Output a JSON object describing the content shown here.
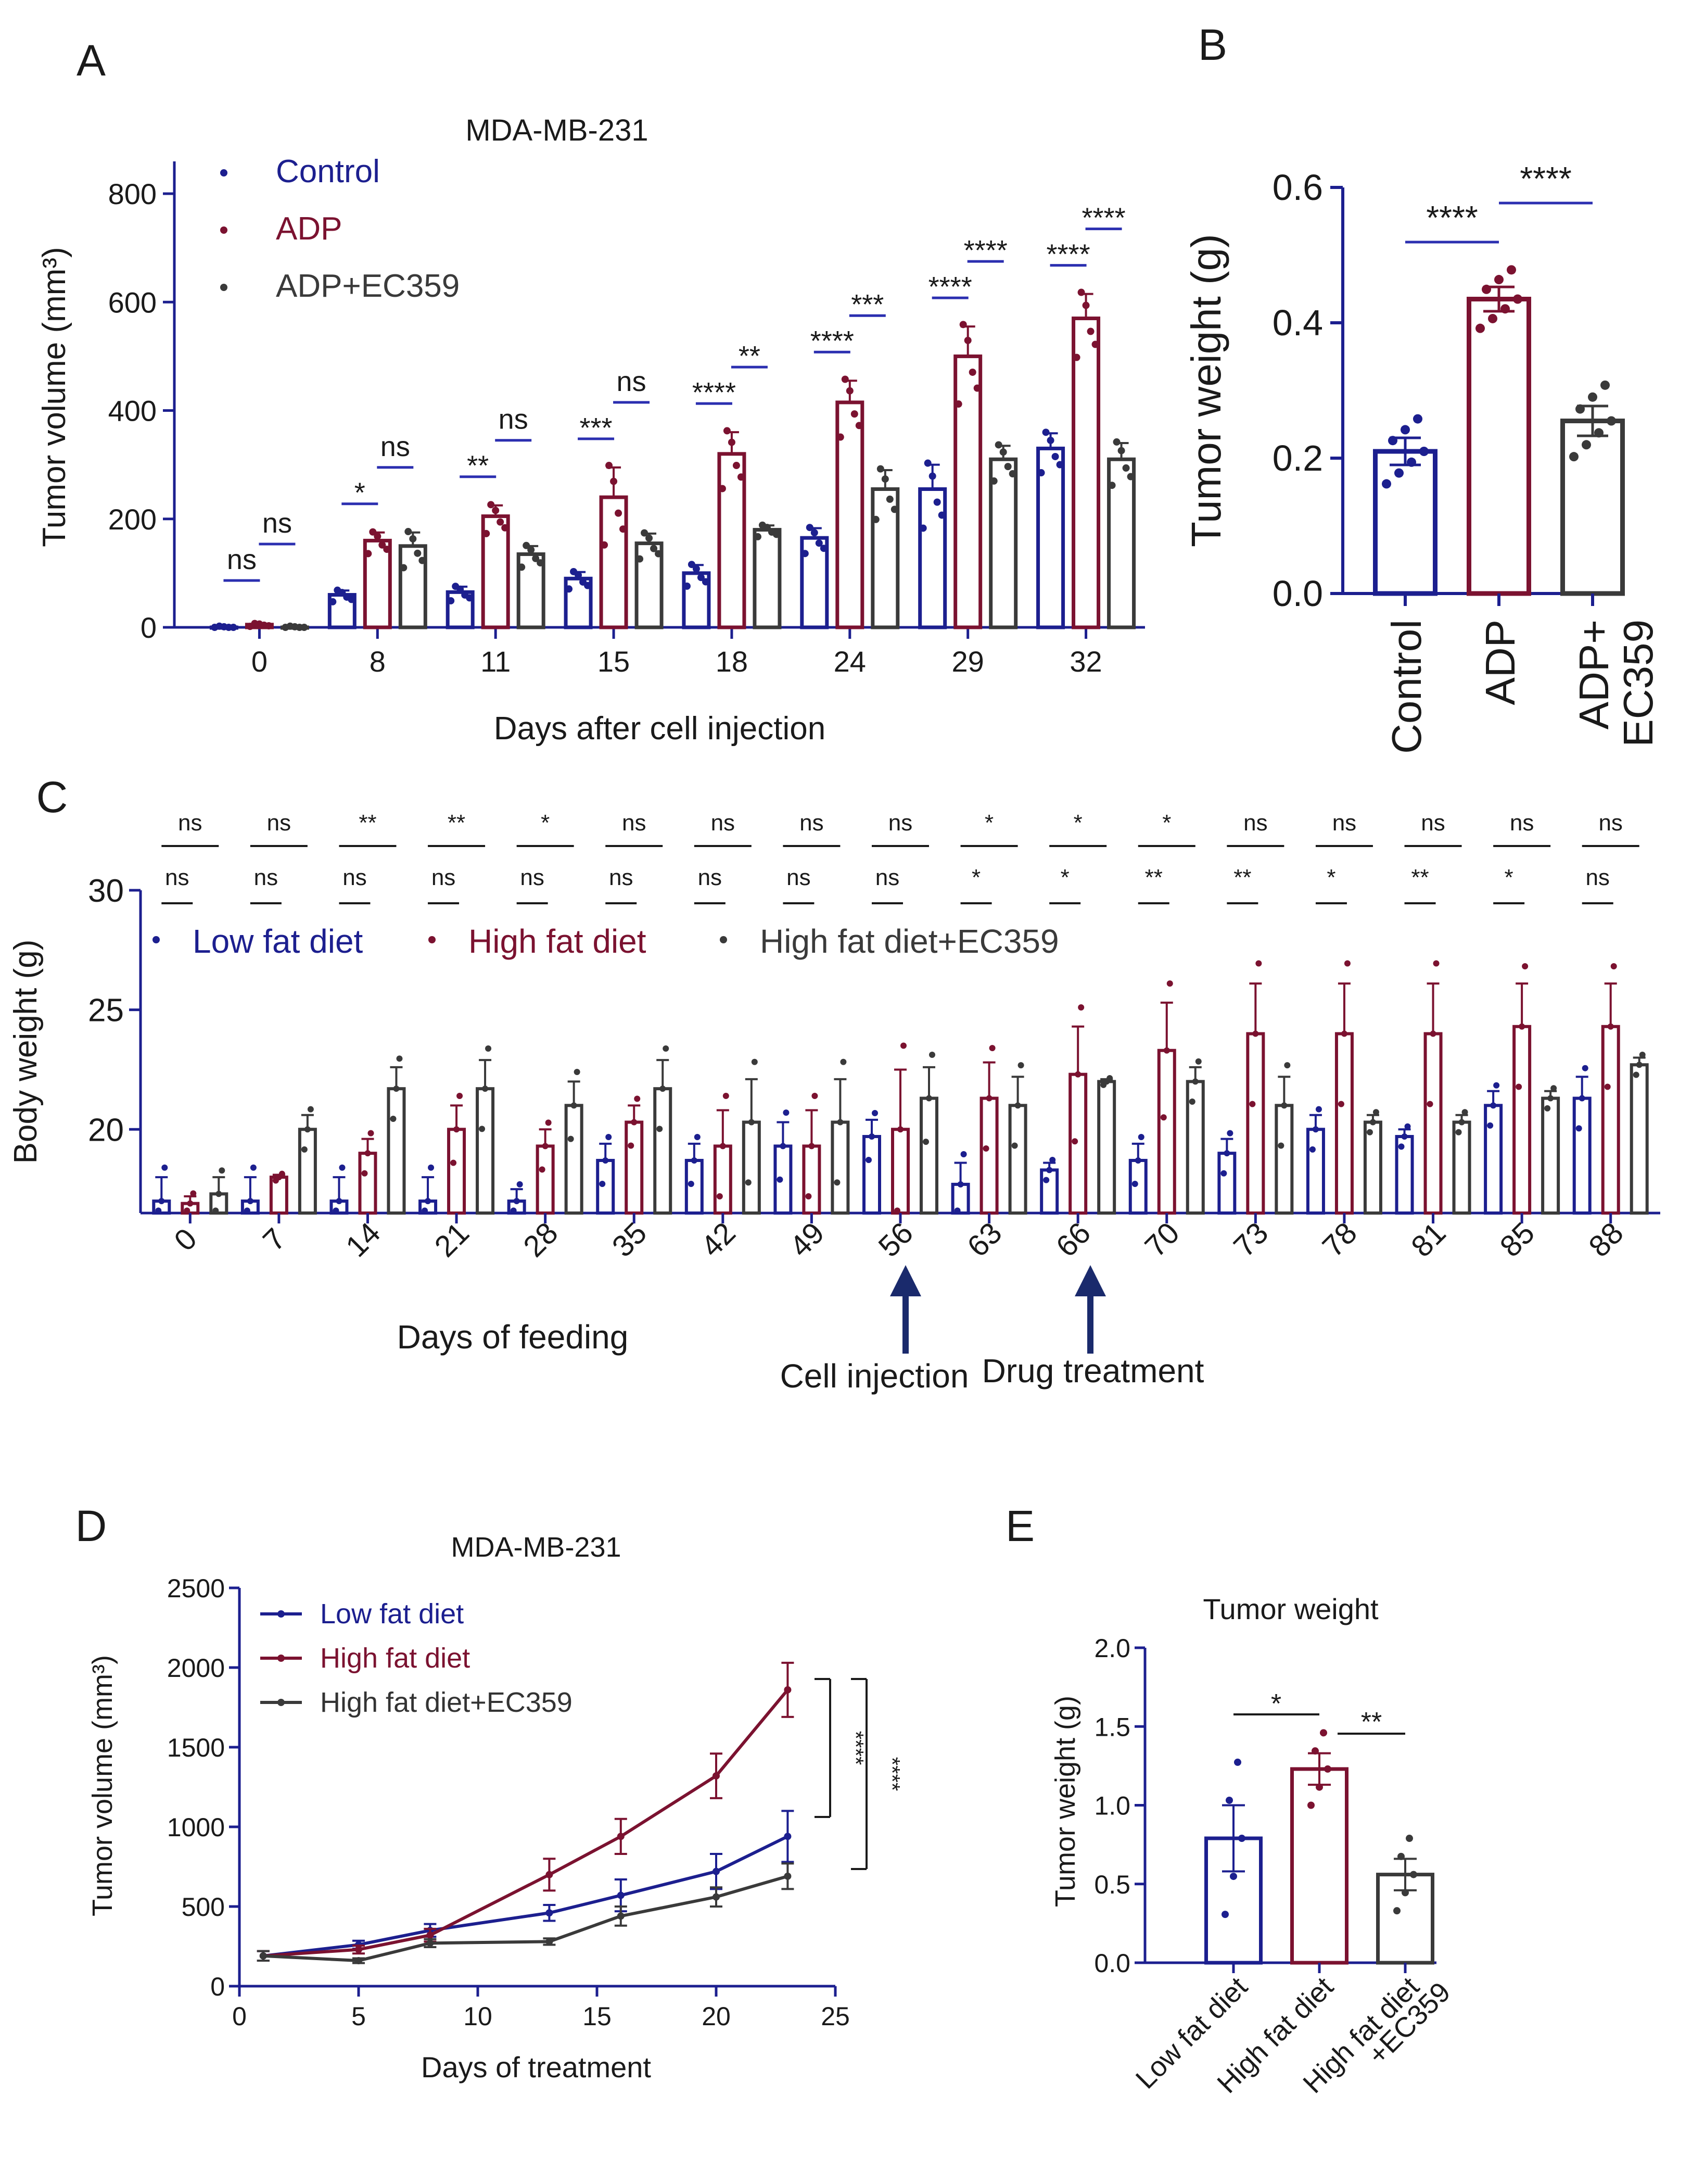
{
  "colors": {
    "control": "#1c1f8f",
    "adp": "#7b1230",
    "ec": "#3a3a3a",
    "sig": "#2b2fb0",
    "axis": "#1c1f8f"
  },
  "panel_labels": {
    "A": "A",
    "B": "B",
    "C": "C",
    "D": "D",
    "E": "E"
  },
  "chart_data": [
    {
      "id": "A",
      "type": "bar",
      "title": "MDA-MB-231",
      "xlabel": "Days after cell injection",
      "ylabel": "Tumor volume (mm³)",
      "ylim": [
        0,
        850
      ],
      "yticks": [
        "0",
        "200",
        "400",
        "600",
        "800"
      ],
      "categories": [
        "0",
        "8",
        "11",
        "15",
        "18",
        "24",
        "29",
        "32"
      ],
      "series": [
        {
          "name": "Control",
          "values": [
            0,
            60,
            65,
            90,
            100,
            165,
            255,
            330
          ],
          "errors": [
            2,
            8,
            10,
            12,
            15,
            18,
            45,
            28
          ]
        },
        {
          "name": "ADP",
          "values": [
            5,
            160,
            205,
            240,
            320,
            415,
            500,
            570
          ],
          "errors": [
            2,
            15,
            20,
            55,
            40,
            40,
            55,
            45
          ]
        },
        {
          "name": "ADP+EC359",
          "values": [
            0,
            150,
            135,
            155,
            180,
            255,
            310,
            310
          ],
          "errors": [
            2,
            25,
            15,
            18,
            8,
            35,
            25,
            30
          ]
        }
      ],
      "sig_control_adp": [
        "ns",
        "*",
        "**",
        "***",
        "****",
        "****",
        "****",
        "****"
      ],
      "sig_adp_ec": [
        "ns",
        "ns",
        "ns",
        "ns",
        "**",
        "***",
        "****",
        "****"
      ],
      "legend": [
        "Control",
        "ADP",
        "ADP+EC359"
      ]
    },
    {
      "id": "B",
      "type": "bar",
      "ylabel": "Tumor weight (g)",
      "ylim": [
        0,
        0.6
      ],
      "yticks": [
        "0.0",
        "0.2",
        "0.4",
        "0.6"
      ],
      "categories": [
        "Control",
        "ADP",
        "ADP+\nEC359"
      ],
      "values": [
        0.21,
        0.435,
        0.255
      ],
      "errors": [
        0.02,
        0.018,
        0.022
      ],
      "sig": [
        "****",
        "****"
      ]
    },
    {
      "id": "C",
      "type": "bar",
      "xlabel": "Days of feeding",
      "ylabel": "Body weight (g)",
      "ylim": [
        16.5,
        30
      ],
      "yticks": [
        "20",
        "25",
        "30"
      ],
      "categories": [
        "0",
        "7",
        "14",
        "21",
        "28",
        "35",
        "42",
        "49",
        "56",
        "63",
        "66",
        "70",
        "73",
        "78",
        "81",
        "85",
        "88"
      ],
      "series": [
        {
          "name": "Low fat diet",
          "values": [
            17,
            17,
            17,
            17,
            17,
            18.7,
            18.7,
            19.3,
            19.7,
            17.7,
            18.3,
            18.7,
            19,
            20,
            19.7,
            21,
            21.3
          ],
          "errors": [
            1,
            1,
            1,
            1,
            0.5,
            0.7,
            0.7,
            1,
            0.7,
            0.9,
            0.3,
            0.7,
            0.6,
            0.6,
            0.3,
            0.6,
            0.9
          ]
        },
        {
          "name": "High fat diet",
          "values": [
            16.9,
            18,
            19,
            20,
            19.3,
            20.3,
            19.3,
            19.3,
            20,
            21.3,
            22.3,
            23.3,
            24,
            24,
            24,
            24.3,
            24.3
          ],
          "errors": [
            0.3,
            0.1,
            0.6,
            1,
            0.7,
            0.7,
            1.5,
            1.5,
            2.5,
            1.5,
            2,
            2,
            2.1,
            2.1,
            2.1,
            1.8,
            1.8
          ]
        },
        {
          "name": "High fat diet+EC359",
          "values": [
            17.3,
            20,
            21.7,
            21.7,
            21,
            21.7,
            20.3,
            20.3,
            21.3,
            21,
            22,
            22,
            21,
            20.3,
            20.3,
            21.3,
            22.7
          ],
          "errors": [
            0.7,
            0.6,
            0.9,
            1.2,
            1,
            1.2,
            1.8,
            1.8,
            1.3,
            1.2,
            0.1,
            0.6,
            1.2,
            0.3,
            0.3,
            0.3,
            0.3
          ]
        }
      ],
      "sig_top": [
        "ns",
        "ns",
        "**",
        "**",
        "*",
        "ns",
        "ns",
        "ns",
        "ns",
        "*",
        "*",
        "*",
        "ns",
        "ns",
        "ns",
        "ns",
        "ns"
      ],
      "sig_bottom": [
        "ns",
        "ns",
        "ns",
        "ns",
        "ns",
        "ns",
        "ns",
        "ns",
        "ns",
        "*",
        "*",
        "**",
        "**",
        "*",
        "**",
        "*",
        "ns"
      ],
      "legend": [
        "Low fat diet",
        "High fat diet",
        "High fat diet+EC359"
      ],
      "annotations": [
        "Cell injection",
        "Drug treatment"
      ]
    },
    {
      "id": "D",
      "type": "line",
      "title": "MDA-MB-231",
      "xlabel": "Days of treatment",
      "ylabel": "Tumor volume (mm³)",
      "xlim": [
        0,
        25
      ],
      "ylim": [
        0,
        2500
      ],
      "xticks": [
        "0",
        "5",
        "10",
        "15",
        "20",
        "25"
      ],
      "yticks": [
        "0",
        "500",
        "1000",
        "1500",
        "2000",
        "2500"
      ],
      "x": [
        1,
        5,
        8,
        13,
        16,
        20,
        23
      ],
      "series": [
        {
          "name": "Low fat diet",
          "values": [
            190,
            260,
            350,
            460,
            570,
            720,
            940
          ],
          "errors": [
            30,
            25,
            40,
            50,
            100,
            110,
            160
          ]
        },
        {
          "name": "High fat diet",
          "values": [
            190,
            230,
            320,
            700,
            940,
            1320,
            1860
          ],
          "errors": [
            30,
            25,
            40,
            100,
            110,
            140,
            170
          ]
        },
        {
          "name": "High fat diet+EC359",
          "values": [
            190,
            160,
            270,
            280,
            440,
            560,
            690
          ],
          "errors": [
            30,
            15,
            25,
            20,
            60,
            60,
            80
          ]
        }
      ],
      "sig": [
        "****",
        "****"
      ],
      "legend": [
        "Low fat diet",
        "High fat diet",
        "High fat diet+EC359"
      ]
    },
    {
      "id": "E",
      "type": "bar",
      "title": "Tumor weight",
      "ylabel": "Tumor weight (g)",
      "ylim": [
        0,
        2
      ],
      "yticks": [
        "0.0",
        "0.5",
        "1.0",
        "1.5",
        "2.0"
      ],
      "categories": [
        "Low fat diet",
        "High fat diet",
        "High fat diet\n+EC359"
      ],
      "values": [
        0.79,
        1.23,
        0.56
      ],
      "errors": [
        0.21,
        0.1,
        0.1
      ],
      "sig": [
        "*",
        "**"
      ]
    }
  ]
}
